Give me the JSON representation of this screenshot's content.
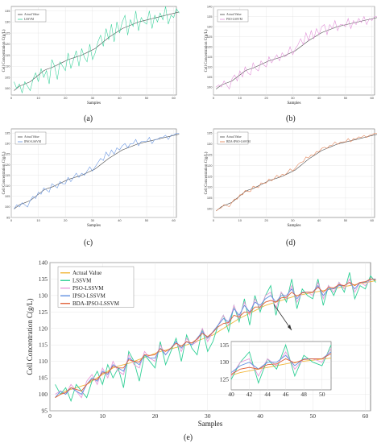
{
  "captions": {
    "a": "(a)",
    "b": "(b)",
    "c": "(c)",
    "d": "(d)",
    "e": "(e)"
  },
  "chart_data": [
    {
      "id": "a",
      "type": "line",
      "xlabel": "Samples",
      "ylabel": "Cell Concentration C(g/L)",
      "x_ticks": [
        0,
        10,
        20,
        30,
        40,
        50,
        60
      ],
      "xlim": [
        0,
        61
      ],
      "ylim": [
        97,
        137
      ],
      "series": [
        {
          "name": "Actual Value",
          "color": "#4a4a4a",
          "values": [
            99,
            100,
            101,
            101.5,
            102,
            102.5,
            103,
            104,
            105,
            106,
            107,
            108,
            108.6,
            109,
            109.4,
            110,
            110.6,
            111.2,
            111.8,
            112.4,
            113,
            113.4,
            113.8,
            114.2,
            114.6,
            115,
            115.6,
            116.2,
            116.8,
            117.4,
            118,
            119,
            120,
            121,
            122,
            123,
            123.8,
            124.6,
            125.4,
            126.2,
            127,
            127.5,
            128,
            128.5,
            129,
            129.5,
            130,
            130.3,
            130.6,
            130.9,
            131.2,
            131.5,
            131.8,
            132.1,
            132.4,
            132.7,
            133,
            133.3,
            133.6,
            133.9,
            134.2,
            134.5
          ]
        },
        {
          "name": "LSSVM",
          "color": "#2fcf95",
          "values": [
            103,
            100,
            102,
            98,
            103,
            101,
            99,
            104,
            107,
            103,
            109,
            105,
            108,
            102,
            113,
            110,
            104,
            112,
            110,
            108,
            116,
            109,
            113,
            117,
            110,
            118,
            114,
            112,
            120,
            113,
            116,
            121,
            124,
            119,
            127,
            122,
            129,
            121,
            130,
            125,
            130,
            133,
            124,
            131,
            128,
            135,
            126,
            132,
            130,
            129,
            135,
            127,
            133,
            130,
            134,
            131,
            137,
            129,
            133,
            132,
            136,
            134
          ]
        }
      ]
    },
    {
      "id": "b",
      "type": "line",
      "xlabel": "Samples",
      "ylabel": "Cell Concentration C(g/L)",
      "x_ticks": [
        0,
        10,
        20,
        30,
        40,
        50,
        60
      ],
      "xlim": [
        0,
        61
      ],
      "ylim": [
        96,
        140
      ],
      "series": [
        {
          "name": "Actual Value",
          "color": "#4a4a4a",
          "values": [
            99,
            100,
            101,
            101.5,
            102,
            102.5,
            103,
            104,
            105,
            106,
            107,
            108,
            108.6,
            109,
            109.4,
            110,
            110.6,
            111.2,
            111.8,
            112.4,
            113,
            113.4,
            113.8,
            114.2,
            114.6,
            115,
            115.6,
            116.2,
            116.8,
            117.4,
            118,
            119,
            120,
            121,
            122,
            123,
            123.8,
            124.6,
            125.4,
            126.2,
            127,
            127.5,
            128,
            128.5,
            129,
            129.5,
            130,
            130.3,
            130.6,
            130.9,
            131.2,
            131.5,
            131.8,
            132.1,
            132.4,
            132.7,
            133,
            133.3,
            133.6,
            133.9,
            134.2,
            134.5
          ]
        },
        {
          "name": "PSO-LSSVM",
          "color": "#e08ad6",
          "values": [
            100,
            101,
            100,
            103,
            101,
            99,
            104,
            106,
            103,
            108,
            105,
            110,
            107,
            106,
            112,
            109,
            108,
            113,
            111,
            110,
            115,
            112,
            114,
            116,
            113,
            117,
            115,
            116,
            120,
            116,
            119,
            121,
            124,
            121,
            127,
            123,
            128,
            124,
            129,
            126,
            130,
            131,
            126,
            131,
            129,
            133,
            128,
            131,
            131,
            130,
            134,
            129,
            133,
            131,
            134,
            132,
            135,
            131,
            134,
            133,
            135,
            135
          ]
        }
      ]
    },
    {
      "id": "c",
      "type": "line",
      "xlabel": "Samples",
      "ylabel": "Cell Concentration C(g/L)",
      "x_ticks": [
        0,
        10,
        20,
        30,
        40,
        50,
        60
      ],
      "xlim": [
        0,
        61
      ],
      "ylim": [
        95,
        137
      ],
      "series": [
        {
          "name": "Actual Value",
          "color": "#4a4a4a",
          "values": [
            99,
            100,
            101,
            101.5,
            102,
            102.5,
            103,
            104,
            105,
            106,
            107,
            108,
            108.6,
            109,
            109.4,
            110,
            110.6,
            111.2,
            111.8,
            112.4,
            113,
            113.4,
            113.8,
            114.2,
            114.6,
            115,
            115.6,
            116.2,
            116.8,
            117.4,
            118,
            119,
            120,
            121,
            122,
            123,
            123.8,
            124.6,
            125.4,
            126.2,
            127,
            127.5,
            128,
            128.5,
            129,
            129.5,
            130,
            130.3,
            130.6,
            130.9,
            131.2,
            131.5,
            131.8,
            132.1,
            132.4,
            132.7,
            133,
            133.3,
            133.6,
            133.9,
            134.2,
            134.5
          ]
        },
        {
          "name": "IPSO-LSSVM",
          "color": "#5f8fe0",
          "values": [
            99,
            101,
            100,
            102,
            101,
            100,
            103,
            105,
            104,
            107,
            106,
            109,
            108,
            107,
            111,
            110,
            109,
            112,
            111,
            111,
            114,
            112,
            114,
            116,
            114,
            116,
            115,
            117,
            119,
            117,
            119,
            121,
            123,
            122,
            126,
            124,
            127,
            125,
            128,
            127,
            129,
            130,
            128,
            130,
            130,
            132,
            129,
            131,
            131,
            131,
            133,
            130,
            132,
            132,
            133,
            133,
            134,
            132,
            134,
            134,
            135,
            135
          ]
        }
      ]
    },
    {
      "id": "d",
      "type": "line",
      "xlabel": "Samples",
      "ylabel": "Cell Concentration C(g/L)",
      "x_ticks": [
        0,
        10,
        20,
        30,
        40,
        50,
        60
      ],
      "xlim": [
        0,
        61
      ],
      "ylim": [
        96,
        137
      ],
      "series": [
        {
          "name": "Actual Value",
          "color": "#4a4a4a",
          "values": [
            99,
            100,
            101,
            101.5,
            102,
            102.5,
            103,
            104,
            105,
            106,
            107,
            108,
            108.6,
            109,
            109.4,
            110,
            110.6,
            111.2,
            111.8,
            112.4,
            113,
            113.4,
            113.8,
            114.2,
            114.6,
            115,
            115.6,
            116.2,
            116.8,
            117.4,
            118,
            119,
            120,
            121,
            122,
            123,
            123.8,
            124.6,
            125.4,
            126.2,
            127,
            127.5,
            128,
            128.5,
            129,
            129.5,
            130,
            130.3,
            130.6,
            130.9,
            131.2,
            131.5,
            131.8,
            132.1,
            132.4,
            132.7,
            133,
            133.3,
            133.6,
            133.9,
            134.2,
            134.5
          ]
        },
        {
          "name": "BDA-IPSO-LSSVM",
          "color": "#e07a4a",
          "values": [
            99,
            100,
            100.5,
            102,
            101.5,
            101,
            103,
            104.5,
            104.5,
            106.5,
            106.5,
            108.5,
            108,
            108,
            110.5,
            110,
            109.8,
            112,
            111.8,
            112,
            113.8,
            113,
            114,
            115.5,
            114.6,
            116,
            115.6,
            116.8,
            118.5,
            117.5,
            118.8,
            120.5,
            121.5,
            121.8,
            124,
            123.5,
            125,
            124.8,
            126.5,
            126.5,
            128,
            128.5,
            128,
            129.3,
            129.5,
            131,
            129.8,
            130.8,
            131,
            131,
            132.5,
            131,
            132.5,
            132.3,
            133.3,
            133,
            134,
            133,
            134,
            134.2,
            135,
            134.8
          ]
        }
      ]
    },
    {
      "id": "e",
      "type": "line",
      "xlabel": "Samples",
      "ylabel": "Cell Concentration C(g/L)",
      "x_ticks": [
        0,
        10,
        20,
        30,
        40,
        50,
        60
      ],
      "y_ticks": [
        95,
        100,
        105,
        110,
        115,
        120,
        125,
        130,
        135,
        140
      ],
      "xlim": [
        0,
        61
      ],
      "ylim": [
        95,
        140
      ],
      "inset": {
        "x_ticks": [
          40,
          42,
          44,
          46,
          48,
          50
        ],
        "y_ticks": [
          125,
          130,
          135
        ],
        "xlim": [
          40,
          51
        ],
        "ylim": [
          122,
          136
        ]
      },
      "series": [
        {
          "name": "Actual Value",
          "color": "#f2b73a",
          "values": [
            99,
            100,
            101,
            101.5,
            102,
            102.5,
            103,
            104,
            105,
            106,
            107,
            108,
            108.6,
            109,
            109.4,
            110,
            110.6,
            111.2,
            111.8,
            112.4,
            113,
            113.4,
            113.8,
            114.2,
            114.6,
            115,
            115.6,
            116.2,
            116.8,
            117.4,
            118,
            119,
            120,
            121,
            122,
            123,
            123.8,
            124.6,
            125.4,
            126.2,
            127,
            127.5,
            128,
            128.5,
            129,
            129.5,
            130,
            130.3,
            130.6,
            130.9,
            131.2,
            131.5,
            131.8,
            132.1,
            132.4,
            132.7,
            133,
            133.3,
            133.6,
            133.9,
            134.2,
            134.5
          ]
        },
        {
          "name": "LSSVM",
          "color": "#2fcf95",
          "values": [
            103,
            100,
            102,
            98,
            103,
            101,
            99,
            104,
            107,
            103,
            109,
            105,
            108,
            102,
            113,
            110,
            104,
            112,
            110,
            108,
            116,
            109,
            113,
            117,
            110,
            118,
            114,
            112,
            120,
            113,
            116,
            121,
            124,
            119,
            127,
            122,
            129,
            121,
            130,
            125,
            130,
            133,
            124,
            131,
            128,
            135,
            126,
            132,
            130,
            129,
            135,
            127,
            133,
            130,
            134,
            131,
            137,
            129,
            133,
            132,
            136,
            134
          ]
        },
        {
          "name": "PSO-LSSVM",
          "color": "#e89ad8",
          "values": [
            100,
            101,
            100,
            103,
            101,
            99,
            104,
            106,
            103,
            108,
            105,
            110,
            107,
            106,
            112,
            109,
            108,
            113,
            111,
            110,
            115,
            112,
            114,
            116,
            113,
            117,
            115,
            116,
            120,
            116,
            119,
            121,
            124,
            121,
            127,
            123,
            128,
            124,
            129,
            126,
            130,
            131,
            126,
            131,
            129,
            133,
            128,
            131,
            131,
            130,
            134,
            129,
            133,
            131,
            134,
            132,
            135,
            131,
            134,
            133,
            135,
            135
          ]
        },
        {
          "name": "IPSO-LSSVM",
          "color": "#5f8fe0",
          "values": [
            99,
            101,
            100,
            102,
            101,
            100,
            103,
            105,
            104,
            107,
            106,
            109,
            108,
            107,
            111,
            110,
            109,
            112,
            111,
            111,
            114,
            112,
            114,
            116,
            114,
            116,
            115,
            117,
            119,
            117,
            119,
            121,
            123,
            122,
            126,
            124,
            127,
            125,
            128,
            127,
            129,
            130,
            128,
            130,
            130,
            132,
            129,
            131,
            131,
            131,
            133,
            130,
            132,
            132,
            133,
            133,
            134,
            132,
            134,
            134,
            135,
            135
          ]
        },
        {
          "name": "BDA-IPSO-LSSVM",
          "color": "#e0623a",
          "values": [
            99,
            100,
            100.5,
            102,
            101.5,
            101,
            103,
            104.5,
            104.5,
            106.5,
            106.5,
            108.5,
            108,
            108,
            110.5,
            110,
            109.8,
            112,
            111.8,
            112,
            113.8,
            113,
            114,
            115.5,
            114.6,
            116,
            115.6,
            116.8,
            118.5,
            117.5,
            118.8,
            120.5,
            121.5,
            121.8,
            124,
            123.5,
            125,
            124.8,
            126.5,
            126.5,
            128,
            128.5,
            128,
            129.3,
            129.5,
            131,
            129.8,
            130.8,
            131,
            131,
            132.5,
            131,
            132.5,
            132.3,
            133.3,
            133,
            134,
            133,
            134,
            134.2,
            135,
            134.8
          ]
        }
      ]
    }
  ]
}
